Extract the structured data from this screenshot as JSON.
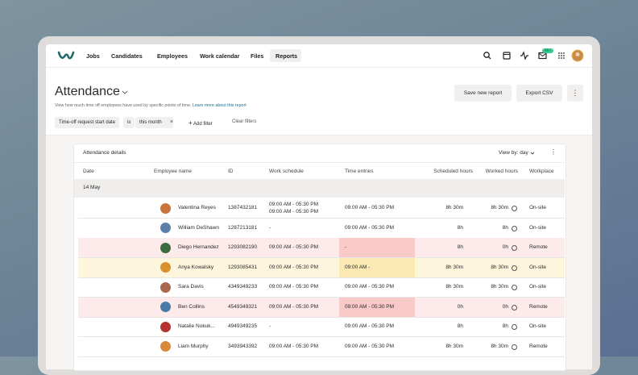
{
  "nav": {
    "items": [
      "Jobs",
      "Candidates",
      "Employees",
      "Work calendar",
      "Files",
      "Reports"
    ],
    "badge": "99+"
  },
  "header": {
    "title": "Attendance",
    "description": "View how much time off employees have used by specific points of time.",
    "link": "Learn more about this report",
    "buttons": [
      "Save new report",
      "Export CSV"
    ]
  },
  "filters": {
    "field": "Time-off request start date",
    "operator": "is",
    "value": "this month",
    "add": "Add filter",
    "clear": "Clear filters"
  },
  "table": {
    "title": "Attendance details",
    "view": "View by: day",
    "columns": [
      "Date",
      "Employee name",
      "ID",
      "Work schedule",
      "Time entries",
      "Scheduled hours",
      "Worked hours",
      "Workplace"
    ],
    "group": "14 May",
    "rows": [
      {
        "name": "Valentina Reyes",
        "id": "1387432181",
        "schedule": [
          "09:00 AM - 05:30 PM",
          "09:00 AM - 05:30 PM"
        ],
        "entries": "09:00 AM - 05:30 PM",
        "scheduled": "8h 30m",
        "worked": "8h 30m",
        "workplace": "On-site"
      },
      {
        "name": "William DeShawn",
        "id": "1287213181",
        "schedule": [
          "-"
        ],
        "entries": "09:00 AM - 05:30 PM",
        "scheduled": "8h",
        "worked": "8h",
        "workplace": "On-site"
      },
      {
        "name": "Diego Hernandez",
        "id": "1293082190",
        "schedule": [
          "09:00 AM - 05:30 PM"
        ],
        "entries": "-",
        "scheduled": "8h",
        "worked": "0h",
        "workplace": "Remote",
        "tint": "#fdeaea",
        "entry_tint": "#f8c9c6"
      },
      {
        "name": "Anya Kowalsky",
        "id": "1293085431",
        "schedule": [
          "09:00 AM - 05:30 PM"
        ],
        "entries": "09:00 AM -",
        "scheduled": "8h 30m",
        "worked": "8h 30m",
        "workplace": "On-site",
        "tint": "#fdf6dc",
        "entry_tint": "#fbe8b2"
      },
      {
        "name": "Sara Davis",
        "id": "4349349233",
        "schedule": [
          "09:00 AM - 05:30 PM"
        ],
        "entries": "09:00 AM - 05:30 PM",
        "scheduled": "8h 30m",
        "worked": "8h 30m",
        "workplace": "On-site"
      },
      {
        "name": "Ben Collins",
        "id": "4549349321",
        "schedule": [
          "09:00 AM - 05:30 PM"
        ],
        "entries": "09:00 AM - 05:30 PM",
        "scheduled": "0h",
        "worked": "0h",
        "workplace": "Remote",
        "tint": "#fdeaea",
        "entry_tint": "#f8c9c6"
      },
      {
        "name": "Natalie Nokuk...",
        "id": "4949349235",
        "schedule": [
          "-"
        ],
        "entries": "09:00 AM - 05:30 PM",
        "scheduled": "8h",
        "worked": "8h",
        "workplace": "On-site"
      },
      {
        "name": "Liam Murphy",
        "id": "3493943392",
        "schedule": [
          "09:00 AM - 05:30 PM"
        ],
        "entries": "09:00 AM - 05:30 PM",
        "scheduled": "8h 30m",
        "worked": "8h 30m",
        "workplace": "Remote"
      }
    ]
  }
}
